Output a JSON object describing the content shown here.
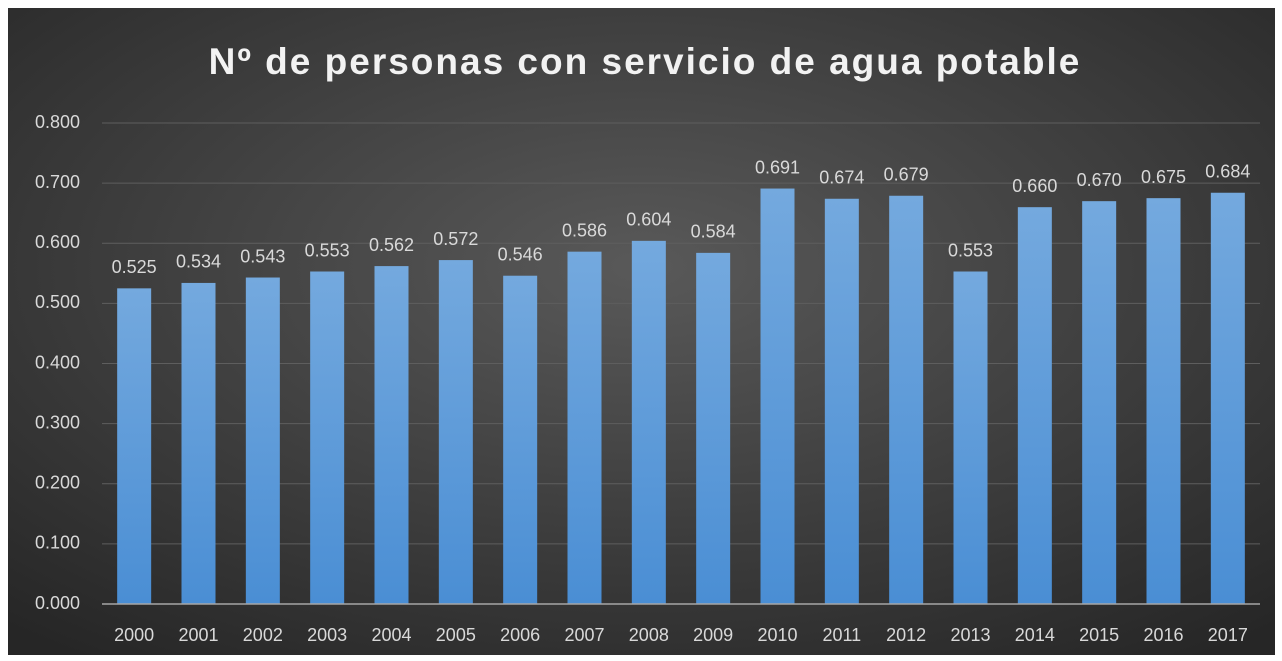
{
  "chart_data": {
    "type": "bar",
    "title": "Nº de personas con servicio de agua potable",
    "categories": [
      "2000",
      "2001",
      "2002",
      "2003",
      "2004",
      "2005",
      "2006",
      "2007",
      "2008",
      "2009",
      "2010",
      "2011",
      "2012",
      "2013",
      "2014",
      "2015",
      "2016",
      "2017"
    ],
    "values": [
      0.525,
      0.534,
      0.543,
      0.553,
      0.562,
      0.572,
      0.546,
      0.586,
      0.604,
      0.584,
      0.691,
      0.674,
      0.679,
      0.553,
      0.66,
      0.67,
      0.675,
      0.684
    ],
    "value_labels": [
      "0.525",
      "0.534",
      "0.543",
      "0.553",
      "0.562",
      "0.572",
      "0.546",
      "0.586",
      "0.604",
      "0.584",
      "0.691",
      "0.674",
      "0.679",
      "0.553",
      "0.660",
      "0.670",
      "0.675",
      "0.684"
    ],
    "color": "#5b9bd5",
    "ylim": [
      0,
      0.8
    ],
    "yticks": [
      {
        "value": 0,
        "label": "0.000"
      },
      {
        "value": 0.1,
        "label": "0.100"
      },
      {
        "value": 0.2,
        "label": "0.200"
      },
      {
        "value": 0.3,
        "label": "0.300"
      },
      {
        "value": 0.4,
        "label": "0.400"
      },
      {
        "value": 0.5,
        "label": "0.500"
      },
      {
        "value": 0.6,
        "label": "0.600"
      },
      {
        "value": 0.7,
        "label": "0.700"
      },
      {
        "value": 0.8,
        "label": "0.800"
      }
    ],
    "grid": true
  }
}
